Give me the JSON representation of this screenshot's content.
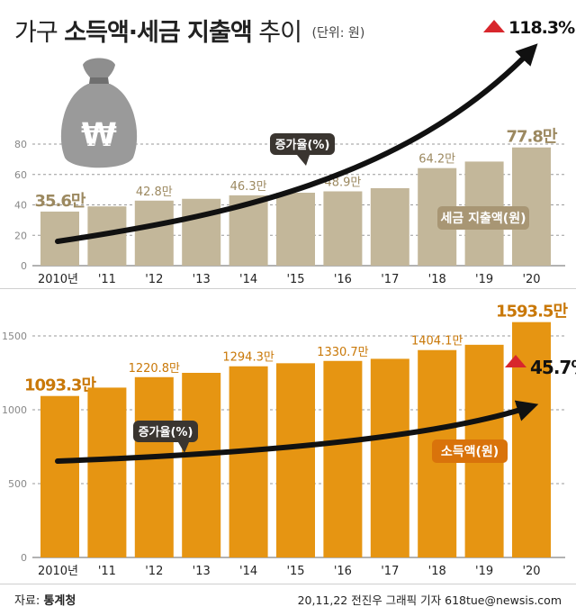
{
  "title": {
    "prefix": "가구",
    "main": "소득액·세금 지출액",
    "suffix": "추이",
    "unit": "(단위: 원)"
  },
  "source": {
    "label": "자료:",
    "name": "통계청"
  },
  "credit": "20,11,22 전진우 그래픽 기자 618tue@newsis.com",
  "colors": {
    "tax_bar": "#c3b79a",
    "income_bar": "#e69512",
    "tax_label": "#9c8960",
    "income_label": "#c97808",
    "arrow": "#111111",
    "up_marker": "#d8262c"
  },
  "icon": "money-bag-won-icon",
  "chart_data": [
    {
      "type": "bar",
      "name": "tax",
      "categories": [
        "2010년",
        "'11",
        "'12",
        "'13",
        "'14",
        "'15",
        "'16",
        "'17",
        "'18",
        "'19",
        "'20"
      ],
      "series": [
        {
          "name": "세금 지출액(원)",
          "values": [
            35.6,
            39.0,
            42.8,
            44.0,
            46.3,
            48.0,
            48.9,
            51.0,
            64.2,
            68.5,
            77.8
          ]
        }
      ],
      "value_labels": [
        "35.6만",
        "",
        "42.8만",
        "",
        "46.3만",
        "",
        "48.9만",
        "",
        "64.2만",
        "",
        "77.8만"
      ],
      "yticks": [
        0,
        20,
        40,
        60,
        80
      ],
      "ylim": [
        0,
        80
      ],
      "trend_label": "증가율(%)",
      "change_label": "118.3%",
      "grid": true
    },
    {
      "type": "bar",
      "name": "income",
      "categories": [
        "2010년",
        "'11",
        "'12",
        "'13",
        "'14",
        "'15",
        "'16",
        "'17",
        "'18",
        "'19",
        "'20"
      ],
      "series": [
        {
          "name": "소득액(원)",
          "values": [
            1093.3,
            1150.0,
            1220.8,
            1250.0,
            1294.3,
            1315.0,
            1330.7,
            1345.0,
            1404.1,
            1440.0,
            1593.5
          ]
        }
      ],
      "value_labels": [
        "1093.3만",
        "",
        "1220.8만",
        "",
        "1294.3만",
        "",
        "1330.7만",
        "",
        "1404.1만",
        "",
        "1593.5만"
      ],
      "yticks": [
        0,
        500,
        1000,
        1500
      ],
      "ylim": [
        0,
        1500
      ],
      "trend_label": "증가율(%)",
      "change_label": "45.7%",
      "grid": true
    }
  ]
}
